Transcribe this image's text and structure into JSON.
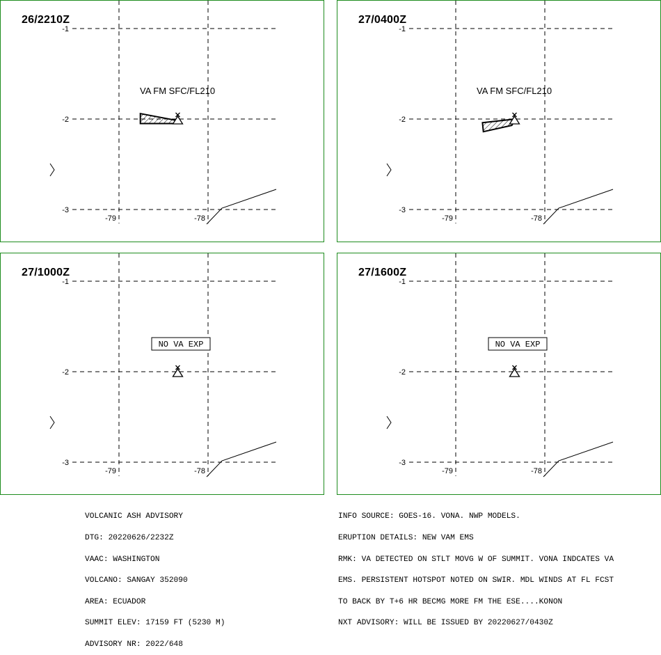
{
  "panels": [
    {
      "time": "26/2210Z",
      "label": "VA FM SFC/FL210",
      "label_boxed": false,
      "ash": [
        [
          -78.76,
          -1.94
        ],
        [
          -78.33,
          -2.02
        ],
        [
          -78.39,
          -2.05
        ],
        [
          -78.76,
          -2.05
        ]
      ]
    },
    {
      "time": "27/0400Z",
      "label": "VA FM SFC/FL210",
      "label_boxed": false,
      "ash": [
        [
          -78.7,
          -2.04
        ],
        [
          -78.33,
          -2.0
        ],
        [
          -78.37,
          -2.07
        ],
        [
          -78.69,
          -2.14
        ]
      ]
    },
    {
      "time": "27/1000Z",
      "label": "NO VA EXP",
      "label_boxed": true,
      "ash": []
    },
    {
      "time": "27/1600Z",
      "label": "NO VA EXP",
      "label_boxed": true,
      "ash": []
    }
  ],
  "grid": {
    "lat_labels": [
      "-1",
      "-2",
      "-3"
    ],
    "lon_labels": [
      "-79",
      "-78"
    ]
  },
  "volcano_location": {
    "lon": -78.34,
    "lat": -2.0
  },
  "advisory": {
    "left_lines": [
      "VOLCANIC ASH ADVISORY",
      "DTG: 20220626/2232Z",
      "VAAC: WASHINGTON",
      "VOLCANO: SANGAY 352090",
      "AREA: ECUADOR",
      "SUMMIT ELEV: 17159 FT (5230 M)",
      "ADVISORY NR: 2022/648"
    ],
    "right_lines": [
      "INFO SOURCE: GOES-16. VONA. NWP MODELS.",
      "ERUPTION DETAILS: NEW VAM EMS",
      "RMK: VA DETECTED ON STLT MOVG W OF SUMMIT. VONA INDCATES VA",
      "EMS. PERSISTENT HOTSPOT NOTED ON SWIR. MDL WINDS AT FL FCST",
      "TO BACK BY T+6 HR BECMG MORE FM THE ESE....KONON",
      "NXT ADVISORY: WILL BE ISSUED BY 20220627/0430Z"
    ]
  },
  "colors": {
    "frame": "#1e8c1e",
    "ink": "#000000",
    "background": "#ffffff"
  }
}
